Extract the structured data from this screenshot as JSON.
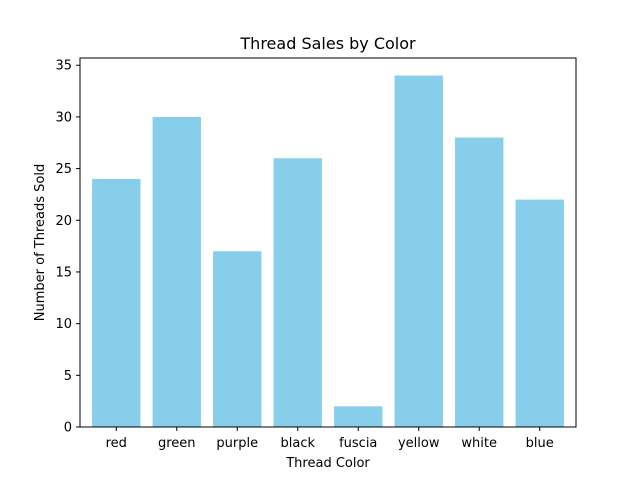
{
  "chart_data": {
    "type": "bar",
    "title": "Thread Sales by Color",
    "xlabel": "Thread Color",
    "ylabel": "Number of Threads Sold",
    "categories": [
      "red",
      "green",
      "purple",
      "black",
      "fuscia",
      "yellow",
      "white",
      "blue"
    ],
    "values": [
      24,
      30,
      17,
      26,
      2,
      34,
      28,
      22
    ],
    "ylim": [
      0,
      35.7
    ],
    "yticks": [
      0,
      5,
      10,
      15,
      20,
      25,
      30,
      35
    ],
    "bar_color": "#87ceeb",
    "grid": false,
    "legend": "none"
  }
}
